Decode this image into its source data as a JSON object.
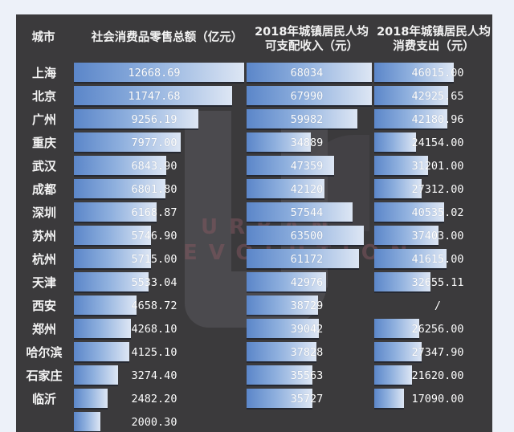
{
  "chart_data": {
    "type": "bar",
    "title": "",
    "orientation": "horizontal",
    "categories": [
      "上海",
      "北京",
      "广州",
      "重庆",
      "武汉",
      "成都",
      "深圳",
      "苏州",
      "杭州",
      "天津",
      "西安",
      "郑州",
      "哈尔滨",
      "石家庄",
      "临沂"
    ],
    "series": [
      {
        "name": "社会消费品零售总额（亿元）",
        "values": [
          12668.69,
          11747.68,
          9256.19,
          7977.0,
          6843.9,
          6801.8,
          6168.87,
          5746.9,
          5715.0,
          5533.04,
          4658.72,
          4268.1,
          4125.1,
          3274.4,
          2482.2
        ]
      },
      {
        "name": "2018年城镇居民人均可支配收入（元）",
        "values": [
          68034,
          67990,
          59982,
          34889,
          47359,
          42120,
          57544,
          63500,
          61172,
          42976,
          38729,
          39042,
          37828,
          35563,
          35727
        ]
      },
      {
        "name": "2018年城镇居民人均消费支出（元）",
        "values": [
          46015.0,
          42925.65,
          42180.96,
          24154.0,
          31201.0,
          27312.0,
          40535.02,
          37403.0,
          41615.0,
          32655.11,
          null,
          26256.0,
          27347.9,
          21620.0,
          17090.0
        ]
      }
    ],
    "partial_next_row": {
      "city": "",
      "retail_sales": "2000.30"
    },
    "xlabel": "",
    "ylabel": "城市",
    "grid": false,
    "legend": "column headers"
  },
  "header": {
    "city": "城市",
    "col1": "社会消费品零售总额（亿元）",
    "col2_line1": "2018年城镇居民人均",
    "col2_line2": "可支配收入（元）",
    "col3_line1": "2018年城镇居民人均",
    "col3_line2": "消费支出（元）"
  },
  "rows": [
    {
      "city": "上海",
      "v1": "12668.69",
      "v2": "68034",
      "v3": "46015.00"
    },
    {
      "city": "北京",
      "v1": "11747.68",
      "v2": "67990",
      "v3": "42925.65"
    },
    {
      "city": "广州",
      "v1": "9256.19",
      "v2": "59982",
      "v3": "42180.96"
    },
    {
      "city": "重庆",
      "v1": "7977.00",
      "v2": "34889",
      "v3": "24154.00"
    },
    {
      "city": "武汉",
      "v1": "6843.90",
      "v2": "47359",
      "v3": "31201.00"
    },
    {
      "city": "成都",
      "v1": "6801.80",
      "v2": "42120",
      "v3": "27312.00"
    },
    {
      "city": "深圳",
      "v1": "6168.87",
      "v2": "57544",
      "v3": "40535.02"
    },
    {
      "city": "苏州",
      "v1": "5746.90",
      "v2": "63500",
      "v3": "37403.00"
    },
    {
      "city": "杭州",
      "v1": "5715.00",
      "v2": "61172",
      "v3": "41615.00"
    },
    {
      "city": "天津",
      "v1": "5533.04",
      "v2": "42976",
      "v3": "32655.11"
    },
    {
      "city": "西安",
      "v1": "4658.72",
      "v2": "38729",
      "v3": "/"
    },
    {
      "city": "郑州",
      "v1": "4268.10",
      "v2": "39042",
      "v3": "26256.00"
    },
    {
      "city": "哈尔滨",
      "v1": "4125.10",
      "v2": "37828",
      "v3": "27347.90"
    },
    {
      "city": "石家庄",
      "v1": "3274.40",
      "v2": "35563",
      "v3": "21620.00"
    },
    {
      "city": "临沂",
      "v1": "2482.20",
      "v2": "35727",
      "v3": "17090.00"
    },
    {
      "city": "",
      "v1": "2000.30",
      "v2": "",
      "v3": ""
    }
  ],
  "watermark": {
    "line1": "URBAN",
    "line2": "EVOLUTION"
  },
  "colors": {
    "panel": "#3b3a3c",
    "page": "#edf1f9",
    "bar_start": "#5b86c9",
    "bar_end": "#dde6f4",
    "text": "#ffffff"
  }
}
